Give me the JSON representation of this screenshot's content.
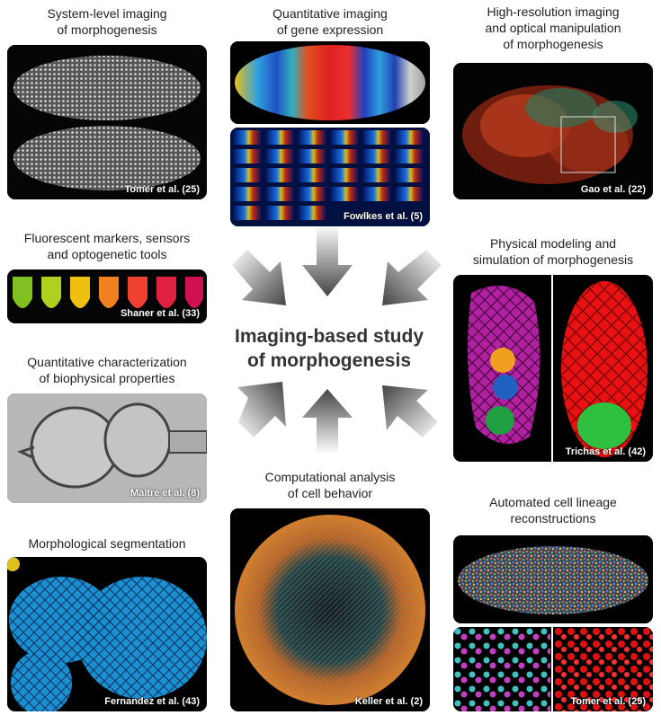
{
  "center": {
    "title_line1": "Imaging-based study",
    "title_line2": "of morphogenesis"
  },
  "panels": {
    "system_level": {
      "caption_l1": "System-level imaging",
      "caption_l2": "of morphogenesis",
      "citation": "Tomer et al. (25)"
    },
    "gene_expression": {
      "caption_l1": "Quantitative imaging",
      "caption_l2": "of gene expression",
      "citation": "Fowlkes et al. (5)"
    },
    "high_resolution": {
      "caption_l1": "High-resolution imaging",
      "caption_l2": "and optical manipulation",
      "caption_l3": "of morphogenesis",
      "citation": "Gao et al. (22)"
    },
    "fluorescent": {
      "caption_l1": "Fluorescent markers, sensors",
      "caption_l2": "and optogenetic tools",
      "citation": "Shaner et al. (33)"
    },
    "physical_modeling": {
      "caption_l1": "Physical modeling and",
      "caption_l2": "simulation of morphogenesis",
      "citation": "Trichas et al. (42)"
    },
    "biophysical": {
      "caption_l1": "Quantitative characterization",
      "caption_l2": "of biophysical properties",
      "citation": "Maître et al. (8)"
    },
    "computational": {
      "caption_l1": "Computational analysis",
      "caption_l2": "of cell behavior",
      "citation": "Keller et al. (2)"
    },
    "lineage": {
      "caption_l1": "Automated cell lineage",
      "caption_l2": "reconstructions",
      "citation": "Tomer et al. (25)"
    },
    "segmentation": {
      "caption_l1": "Morphological segmentation",
      "citation": "Fernandez et al. (43)"
    }
  }
}
